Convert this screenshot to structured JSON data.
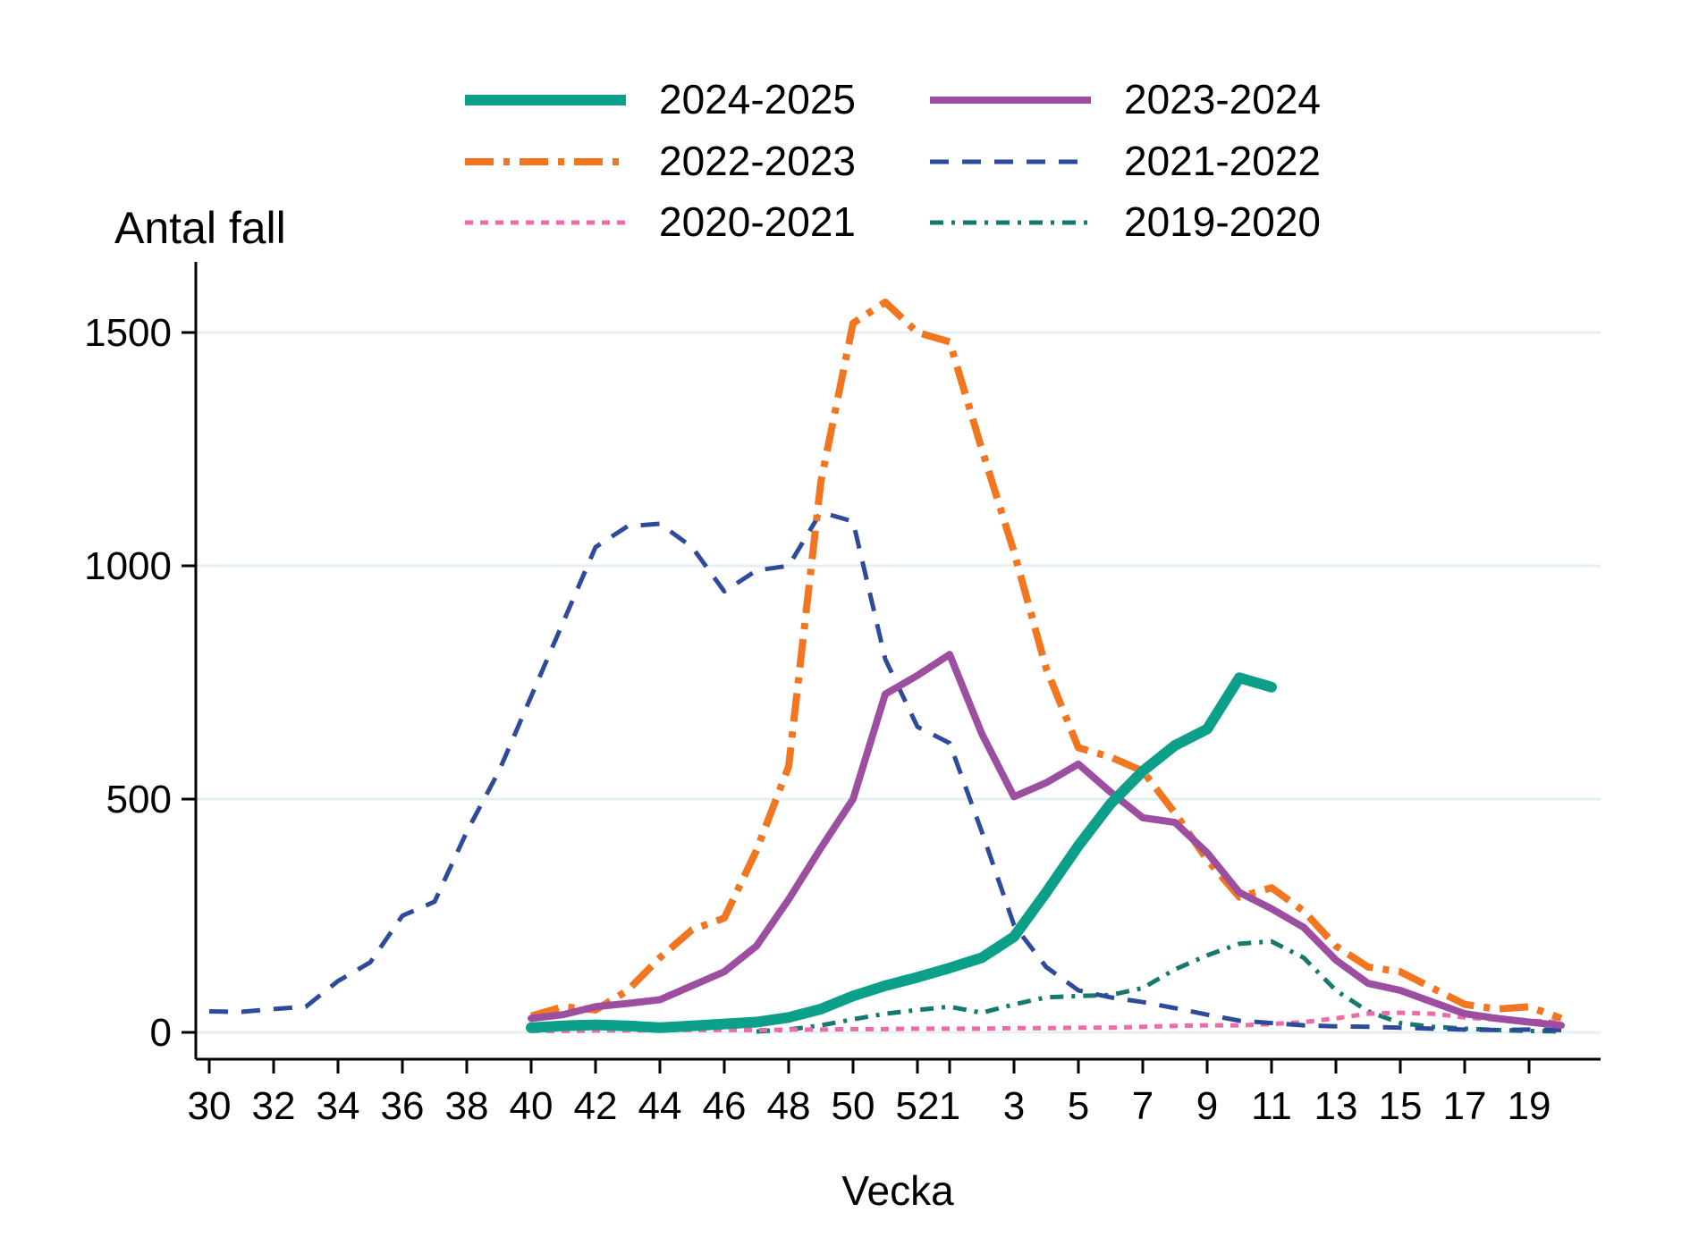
{
  "titles": {
    "y_axis": "Antal fall",
    "x_axis": "Vecka"
  },
  "colors": {
    "background": "#ffffff",
    "axis": "#000000",
    "gridline": "#e6eff1",
    "teal_2024_2025": "#0ca08a",
    "purple_2023_2024": "#9c4ea0",
    "orange_2022_2023": "#f2751f",
    "navy_2021_2022": "#2d4a9b",
    "pink_2020_2021": "#ee6ba8",
    "darkteal_2019_2020": "#15796e"
  },
  "legend": [
    {
      "label": "2024-2025",
      "series": "2024-2025"
    },
    {
      "label": "2023-2024",
      "series": "2023-2024"
    },
    {
      "label": "2022-2023",
      "series": "2022-2023"
    },
    {
      "label": "2021-2022",
      "series": "2021-2022"
    },
    {
      "label": "2020-2021",
      "series": "2020-2021"
    },
    {
      "label": "2019-2020",
      "series": "2019-2020"
    }
  ],
  "chart_data": {
    "type": "line",
    "title": "",
    "xlabel": "Vecka",
    "ylabel": "Antal fall",
    "ylim": [
      0,
      1600
    ],
    "grid": "horizontal",
    "legend_position": "top",
    "x_categories": [
      "30",
      "31",
      "32",
      "33",
      "34",
      "35",
      "36",
      "37",
      "38",
      "39",
      "40",
      "41",
      "42",
      "43",
      "44",
      "45",
      "46",
      "47",
      "48",
      "49",
      "50",
      "51",
      "52",
      "1",
      "2",
      "3",
      "4",
      "5",
      "6",
      "7",
      "8",
      "9",
      "10",
      "11",
      "12",
      "13",
      "14",
      "15",
      "16",
      "17",
      "18",
      "19",
      "20"
    ],
    "x_tick_labels": [
      "30",
      "32",
      "34",
      "36",
      "38",
      "40",
      "42",
      "44",
      "46",
      "48",
      "50",
      "52",
      "1",
      "3",
      "5",
      "7",
      "9",
      "11",
      "13",
      "15",
      "17",
      "19"
    ],
    "y_ticks": [
      0,
      500,
      1000,
      1500
    ],
    "y_tick_labels": [
      "0",
      "500",
      "1000",
      "1500"
    ],
    "series": [
      {
        "name": "2024-2025",
        "color": "#0ca08a",
        "style": "solid",
        "width": 12,
        "weeks": [
          "40",
          "41",
          "42",
          "43",
          "44",
          "45",
          "46",
          "47",
          "48",
          "49",
          "50",
          "51",
          "52",
          "1",
          "2",
          "3",
          "4",
          "5",
          "6",
          "7",
          "8",
          "9",
          "10",
          "11"
        ],
        "values": [
          10,
          14,
          16,
          14,
          10,
          14,
          18,
          22,
          32,
          50,
          78,
          100,
          118,
          138,
          160,
          205,
          300,
          400,
          490,
          560,
          615,
          650,
          760,
          740
        ]
      },
      {
        "name": "2023-2024",
        "color": "#9c4ea0",
        "style": "solid",
        "width": 8,
        "weeks": [
          "40",
          "41",
          "42",
          "43",
          "44",
          "45",
          "46",
          "47",
          "48",
          "49",
          "50",
          "51",
          "52",
          "1",
          "2",
          "3",
          "4",
          "5",
          "6",
          "7",
          "8",
          "9",
          "10",
          "11",
          "12",
          "13",
          "14",
          "15",
          "16",
          "17",
          "18",
          "19",
          "20"
        ],
        "values": [
          30,
          38,
          55,
          62,
          70,
          100,
          130,
          185,
          285,
          395,
          500,
          725,
          765,
          810,
          640,
          505,
          535,
          575,
          515,
          460,
          450,
          385,
          300,
          265,
          225,
          155,
          105,
          90,
          65,
          40,
          30,
          22,
          15
        ]
      },
      {
        "name": "2022-2023",
        "color": "#f2751f",
        "style": "longdash-dot",
        "width": 8,
        "weeks": [
          "40",
          "41",
          "42",
          "43",
          "44",
          "45",
          "46",
          "47",
          "48",
          "49",
          "50",
          "51",
          "52",
          "1",
          "2",
          "3",
          "4",
          "5",
          "6",
          "7",
          "8",
          "9",
          "10",
          "11",
          "12",
          "13",
          "14",
          "15",
          "16",
          "17",
          "18",
          "19",
          "20"
        ],
        "values": [
          35,
          55,
          48,
          90,
          160,
          220,
          245,
          390,
          570,
          1180,
          1520,
          1565,
          1500,
          1480,
          1250,
          1030,
          780,
          610,
          590,
          560,
          470,
          370,
          290,
          310,
          260,
          185,
          140,
          130,
          95,
          60,
          50,
          55,
          30
        ]
      },
      {
        "name": "2021-2022",
        "color": "#2d4a9b",
        "style": "dash",
        "width": 5,
        "weeks": [
          "30",
          "31",
          "32",
          "33",
          "34",
          "35",
          "36",
          "37",
          "38",
          "39",
          "40",
          "41",
          "42",
          "43",
          "44",
          "45",
          "46",
          "47",
          "48",
          "49",
          "50",
          "51",
          "52",
          "1",
          "2",
          "3",
          "4",
          "5",
          "6",
          "7",
          "8",
          "9",
          "10",
          "11",
          "12",
          "13",
          "14",
          "15",
          "16",
          "17",
          "18",
          "19",
          "20"
        ],
        "values": [
          45,
          44,
          50,
          55,
          110,
          150,
          250,
          280,
          430,
          560,
          720,
          880,
          1040,
          1085,
          1090,
          1040,
          945,
          990,
          1000,
          1115,
          1095,
          800,
          655,
          620,
          430,
          230,
          140,
          90,
          75,
          65,
          52,
          38,
          25,
          20,
          15,
          13,
          12,
          10,
          8,
          6,
          5,
          6,
          5
        ]
      },
      {
        "name": "2020-2021",
        "color": "#ee6ba8",
        "style": "shortdash",
        "width": 5,
        "weeks": [
          "40",
          "41",
          "42",
          "43",
          "44",
          "45",
          "46",
          "47",
          "48",
          "49",
          "50",
          "51",
          "52",
          "1",
          "2",
          "3",
          "4",
          "5",
          "6",
          "7",
          "8",
          "9",
          "10",
          "11",
          "12",
          "13",
          "14",
          "15",
          "16",
          "17",
          "18",
          "19",
          "20"
        ],
        "values": [
          3,
          3,
          4,
          4,
          5,
          5,
          5,
          5,
          6,
          6,
          7,
          7,
          8,
          8,
          8,
          9,
          9,
          10,
          10,
          12,
          14,
          15,
          15,
          18,
          22,
          30,
          40,
          42,
          40,
          32,
          27,
          25,
          22
        ]
      },
      {
        "name": "2019-2020",
        "color": "#15796e",
        "style": "dash-dot",
        "width": 5,
        "weeks": [
          "47",
          "48",
          "49",
          "50",
          "51",
          "52",
          "1",
          "2",
          "3",
          "4",
          "5",
          "6",
          "7",
          "8",
          "9",
          "10",
          "11",
          "12",
          "13",
          "14",
          "15",
          "16",
          "17",
          "18",
          "19",
          "20"
        ],
        "values": [
          2,
          6,
          15,
          28,
          40,
          48,
          55,
          42,
          60,
          75,
          78,
          80,
          95,
          135,
          165,
          190,
          195,
          160,
          90,
          45,
          20,
          12,
          8,
          5,
          3,
          2
        ]
      }
    ]
  }
}
